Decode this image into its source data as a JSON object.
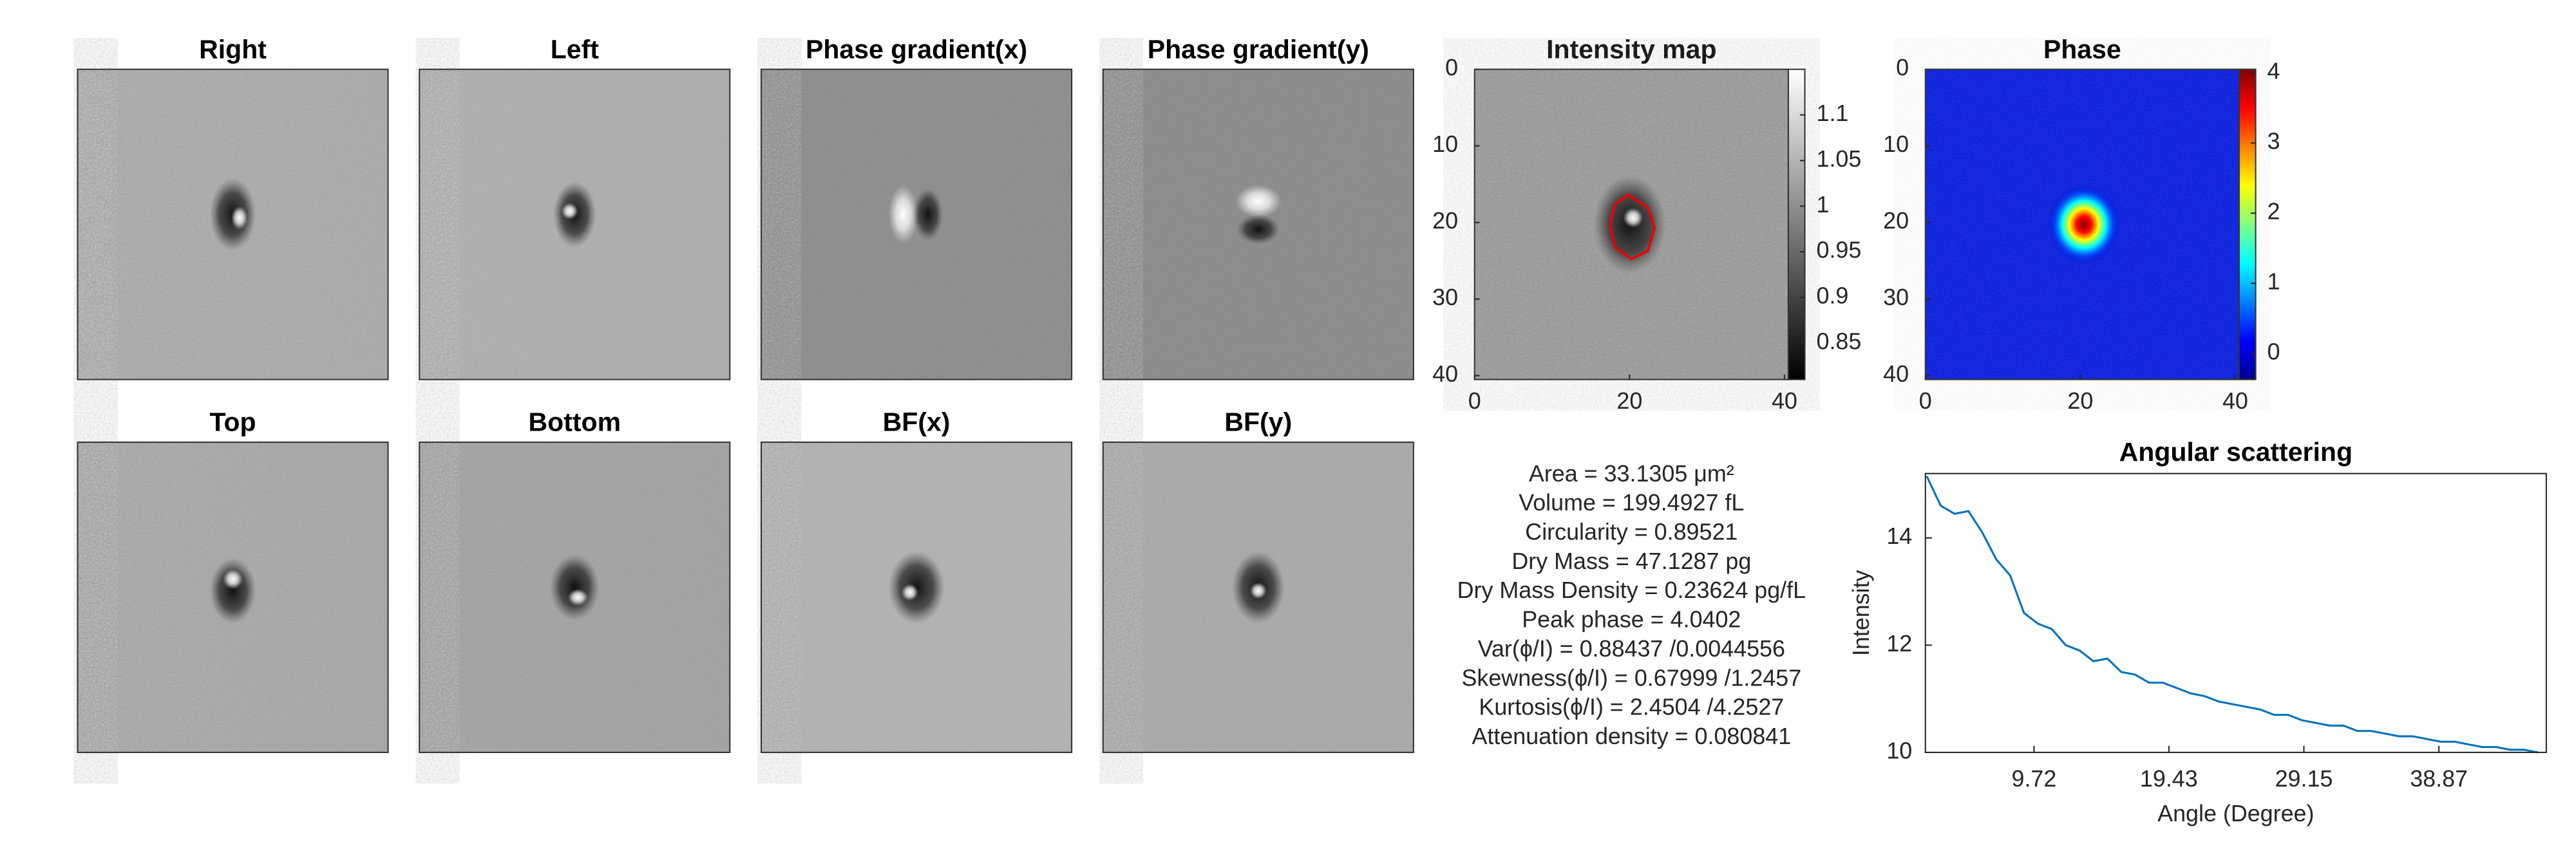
{
  "image_panels": [
    {
      "title": "Right"
    },
    {
      "title": "Left"
    },
    {
      "title": "Phase gradient(x)"
    },
    {
      "title": "Phase gradient(y)"
    },
    {
      "title": "Top"
    },
    {
      "title": "Bottom"
    },
    {
      "title": "BF(x)"
    },
    {
      "title": "BF(y)"
    }
  ],
  "intensity_map": {
    "title": "Intensity map",
    "xlim": [
      0,
      40.5
    ],
    "ylim": [
      0,
      40.5
    ],
    "xticks": [
      0,
      20,
      40
    ],
    "yticks": [
      0,
      10,
      20,
      30,
      40
    ],
    "clim": [
      0.81,
      1.15
    ],
    "cticks": [
      0.85,
      0.9,
      0.95,
      1,
      1.05,
      1.1
    ]
  },
  "phase_map": {
    "title": "Phase",
    "xlim": [
      0,
      40.5
    ],
    "ylim": [
      0,
      40.5
    ],
    "xticks": [
      0,
      20,
      40
    ],
    "yticks": [
      0,
      10,
      20,
      30,
      40
    ],
    "clim": [
      -0.37,
      4.05
    ],
    "cticks": [
      0,
      1,
      2,
      3,
      4
    ]
  },
  "measurements": [
    "Area = 33.1305 μm²",
    "Volume = 199.4927 fL",
    "Circularity = 0.89521",
    "Dry Mass = 47.1287 pg",
    "Dry Mass Density = 0.23624 pg/fL",
    "Peak phase = 4.0402",
    "Var(ϕ/I) = 0.88437 /0.0044556",
    "Skewness(ϕ/I) = 0.67999 /1.2457",
    "Kurtosis(ϕ/I) = 2.4504 /4.2527",
    "Attenuation density = 0.080841"
  ],
  "chart_data": {
    "type": "line",
    "title": "Angular scattering",
    "x_label": "Angle (Degree)",
    "y_label": "Intensity",
    "color": "#0072bd",
    "x": [
      2,
      3,
      4,
      5,
      6,
      7,
      8,
      9,
      10,
      11,
      12,
      13,
      14,
      15,
      16,
      17,
      18,
      19,
      20,
      21,
      22,
      23,
      24,
      25,
      26,
      27,
      28,
      29,
      30,
      31,
      32,
      33,
      34,
      35,
      36,
      37,
      38,
      39,
      40,
      41,
      42,
      43,
      44,
      45,
      46
    ],
    "values": [
      15.15,
      14.6,
      14.45,
      14.5,
      14.1,
      13.6,
      13.3,
      12.6,
      12.4,
      12.3,
      12.0,
      11.9,
      11.7,
      11.75,
      11.5,
      11.45,
      11.3,
      11.3,
      11.2,
      11.1,
      11.05,
      10.95,
      10.9,
      10.85,
      10.8,
      10.7,
      10.7,
      10.6,
      10.55,
      10.5,
      10.5,
      10.4,
      10.4,
      10.35,
      10.3,
      10.3,
      10.25,
      10.2,
      10.2,
      10.15,
      10.1,
      10.1,
      10.05,
      10.05,
      10.0
    ],
    "xlim": [
      1.9,
      46.6
    ],
    "ylim": [
      10,
      15.2
    ],
    "xticks": [
      9.72,
      19.43,
      29.15,
      38.87
    ],
    "yticks": [
      10,
      12,
      14
    ]
  }
}
